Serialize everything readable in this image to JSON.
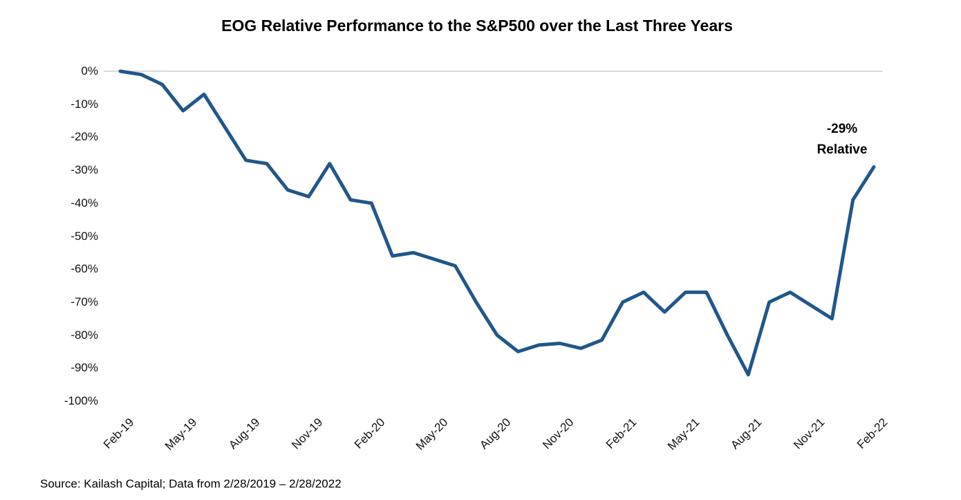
{
  "title": "EOG Relative Performance to the S&P500 over the Last Three Years",
  "source_note": "Source: Kailash Capital; Data from 2/28/2019 – 2/28/2022",
  "colors": {
    "line": "#20578A",
    "gridline": "#D9D9D9",
    "text": "#000000",
    "background": "#FFFFFF"
  },
  "chart_data": {
    "type": "line",
    "title": "EOG Relative Performance to the S&P500 over the Last Three Years",
    "xlabel": "",
    "ylabel": "",
    "ylim": [
      -100,
      0
    ],
    "grid": "single horizontal gridline at 0% only",
    "legend": "none",
    "x": [
      "Feb-19",
      "Mar-19",
      "Apr-19",
      "May-19",
      "Jun-19",
      "Jul-19",
      "Aug-19",
      "Sep-19",
      "Oct-19",
      "Nov-19",
      "Dec-19",
      "Jan-20",
      "Feb-20",
      "Mar-20",
      "Apr-20",
      "May-20",
      "Jun-20",
      "Jul-20",
      "Aug-20",
      "Sep-20",
      "Oct-20",
      "Nov-20",
      "Dec-20",
      "Jan-21",
      "Feb-21",
      "Mar-21",
      "Apr-21",
      "May-21",
      "Jun-21",
      "Jul-21",
      "Aug-21",
      "Sep-21",
      "Oct-21",
      "Nov-21",
      "Dec-21",
      "Jan-22",
      "Feb-22"
    ],
    "series": [
      {
        "name": "EOG relative performance to S&P500 (%)",
        "values": [
          0,
          -1,
          -4,
          -12,
          -7,
          -17,
          -27,
          -28,
          -36,
          -38,
          -28,
          -39,
          -40,
          -56,
          -55,
          -57,
          -59,
          -70,
          -80,
          -85,
          -83,
          -82.5,
          -84,
          -81.5,
          -70,
          -67,
          -73,
          -67,
          -67,
          -80,
          -92,
          -70,
          -67,
          -71,
          -75,
          -39,
          -29
        ]
      }
    ],
    "x_tick_labels": [
      "Feb-19",
      "May-19",
      "Aug-19",
      "Nov-19",
      "Feb-20",
      "May-20",
      "Aug-20",
      "Nov-20",
      "Feb-21",
      "May-21",
      "Aug-21",
      "Nov-21",
      "Feb-22"
    ],
    "x_tick_every": 3,
    "y_tick_labels": [
      "0%",
      "-10%",
      "-20%",
      "-30%",
      "-40%",
      "-50%",
      "-60%",
      "-70%",
      "-80%",
      "-90%",
      "-100%"
    ],
    "annotation": {
      "line1": "-29%",
      "line2": "Relative",
      "attached_to_x": "Feb-22",
      "attached_to_y": -29
    }
  }
}
